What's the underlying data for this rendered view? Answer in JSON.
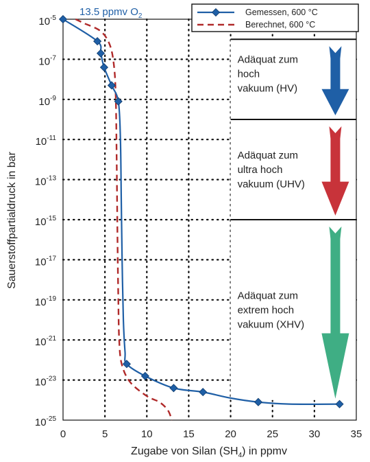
{
  "chart_data": {
    "type": "line",
    "xlabel_main": "Zugabe von Silan (SH",
    "xlabel_sub": "4",
    "xlabel_tail": ") in ppmv",
    "ylabel": "Sauerstoffpartialdruck in bar",
    "xlim": [
      0,
      35
    ],
    "x_ticks": [
      0,
      5,
      10,
      15,
      20,
      25,
      30,
      35
    ],
    "y_scale": "log",
    "ylim_exp": [
      -25,
      -5
    ],
    "y_tick_base": "10",
    "y_tick_exps": [
      -5,
      -7,
      -9,
      -11,
      -13,
      -15,
      -17,
      -19,
      -21,
      -23,
      -25
    ],
    "grid": true,
    "legend_position": "top-right",
    "annotation": {
      "main": "13.5 ppmv O",
      "sub": "2"
    },
    "series": [
      {
        "name": "Gemessen, 600 °C",
        "color": "#1f5fa6",
        "style": "solid-with-markers",
        "markers": [
          {
            "x": 0.0,
            "log_p": -5.0
          },
          {
            "x": 4.1,
            "log_p": -6.1
          },
          {
            "x": 4.5,
            "log_p": -6.7
          },
          {
            "x": 4.9,
            "log_p": -7.4
          },
          {
            "x": 5.8,
            "log_p": -8.3
          },
          {
            "x": 6.6,
            "log_p": -9.1
          },
          {
            "x": 7.6,
            "log_p": -22.2
          },
          {
            "x": 9.8,
            "log_p": -22.8
          },
          {
            "x": 13.2,
            "log_p": -23.4
          },
          {
            "x": 16.7,
            "log_p": -23.6
          },
          {
            "x": 23.3,
            "log_p": -24.1
          },
          {
            "x": 33.0,
            "log_p": -24.2
          }
        ],
        "curve": [
          {
            "x": 0.0,
            "log_p": -5.0
          },
          {
            "x": 4.1,
            "log_p": -6.1
          },
          {
            "x": 4.5,
            "log_p": -6.7
          },
          {
            "x": 4.9,
            "log_p": -7.4
          },
          {
            "x": 5.8,
            "log_p": -8.3
          },
          {
            "x": 6.6,
            "log_p": -9.1
          },
          {
            "x": 6.85,
            "log_p": -11.0
          },
          {
            "x": 6.95,
            "log_p": -14.0
          },
          {
            "x": 7.05,
            "log_p": -17.0
          },
          {
            "x": 7.2,
            "log_p": -20.0
          },
          {
            "x": 7.4,
            "log_p": -21.6
          },
          {
            "x": 7.6,
            "log_p": -22.2
          },
          {
            "x": 9.8,
            "log_p": -22.8
          },
          {
            "x": 13.2,
            "log_p": -23.4
          },
          {
            "x": 16.7,
            "log_p": -23.6
          },
          {
            "x": 20.0,
            "log_p": -23.9
          },
          {
            "x": 23.3,
            "log_p": -24.1
          },
          {
            "x": 27.0,
            "log_p": -24.2
          },
          {
            "x": 33.0,
            "log_p": -24.2
          }
        ]
      },
      {
        "name": "Berechnet,  600 °C",
        "color": "#b02a2a",
        "style": "dashed",
        "curve": [
          {
            "x": 1.5,
            "log_p": -5.0
          },
          {
            "x": 2.5,
            "log_p": -5.2
          },
          {
            "x": 4.5,
            "log_p": -5.6
          },
          {
            "x": 5.6,
            "log_p": -6.3
          },
          {
            "x": 6.1,
            "log_p": -7.4
          },
          {
            "x": 6.3,
            "log_p": -9.0
          },
          {
            "x": 6.4,
            "log_p": -12.0
          },
          {
            "x": 6.5,
            "log_p": -16.0
          },
          {
            "x": 6.6,
            "log_p": -19.0
          },
          {
            "x": 6.7,
            "log_p": -21.0
          },
          {
            "x": 7.0,
            "log_p": -22.2
          },
          {
            "x": 8.0,
            "log_p": -23.1
          },
          {
            "x": 10.0,
            "log_p": -23.8
          },
          {
            "x": 11.5,
            "log_p": -24.1
          },
          {
            "x": 12.5,
            "log_p": -24.5
          },
          {
            "x": 13.0,
            "log_p": -25.0
          }
        ]
      }
    ],
    "zones": [
      {
        "lines": [
          "Adäquat zum",
          "hoch",
          "vakuum (HV)"
        ],
        "color": "#1f5fa6",
        "from_exp": -6,
        "to_exp": -10
      },
      {
        "lines": [
          "Adäquat zum",
          "ultra hoch",
          "vakuum (UHV)"
        ],
        "color": "#c8333a",
        "from_exp": -10,
        "to_exp": -15
      },
      {
        "lines": [
          "Adäquat zum",
          "extrem hoch",
          "vakuum (XHV)"
        ],
        "color": "#3fae84",
        "from_exp": -15,
        "to_exp": -24
      }
    ]
  }
}
